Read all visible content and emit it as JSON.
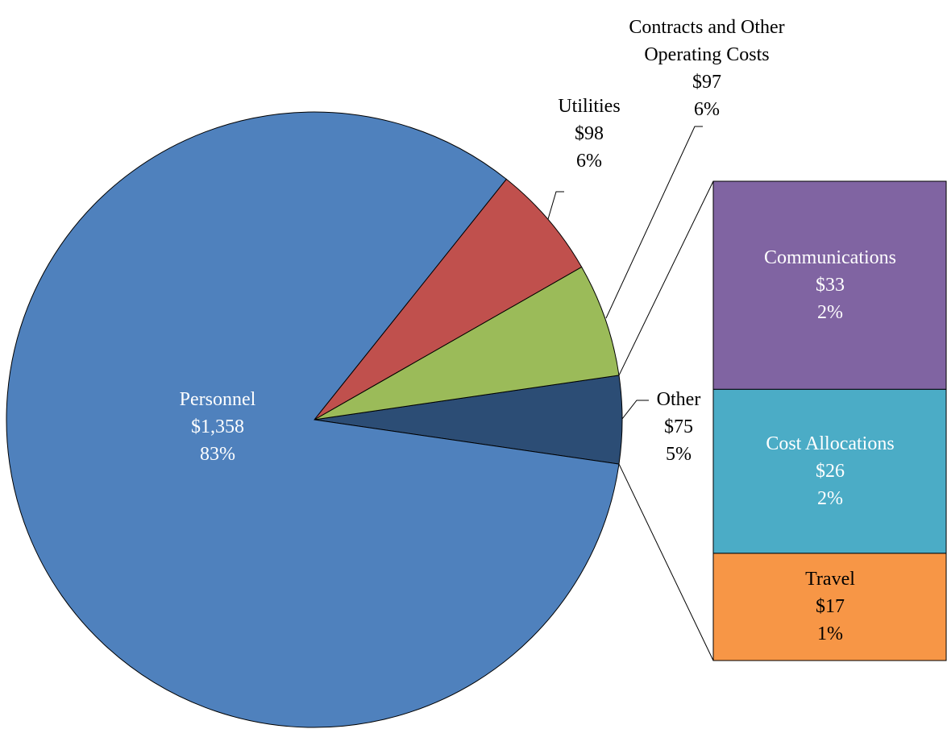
{
  "chart_data": {
    "type": "pie-of-bar",
    "categories": [
      "Personnel",
      "Utilities",
      "Contracts and Other Operating Costs",
      "Other"
    ],
    "values": [
      1358,
      98,
      97,
      75
    ],
    "value_labels": [
      "$1,358",
      "$98",
      "$97",
      "$75"
    ],
    "percents": [
      83,
      6,
      6,
      5
    ],
    "percent_labels": [
      "83%",
      "6%",
      "6%",
      "5%"
    ],
    "colors": [
      "#4f81bd",
      "#c0504d",
      "#9bbb59",
      "#2c4d75"
    ],
    "breakdown": {
      "categories": [
        "Communications",
        "Cost Allocations",
        "Travel"
      ],
      "values": [
        33,
        26,
        17
      ],
      "value_labels": [
        "$33",
        "$26",
        "$17"
      ],
      "percents": [
        2,
        2,
        1
      ],
      "percent_labels": [
        "2%",
        "2%",
        "1%"
      ],
      "colors": [
        "#8064a2",
        "#4bacc6",
        "#f79646"
      ]
    }
  }
}
